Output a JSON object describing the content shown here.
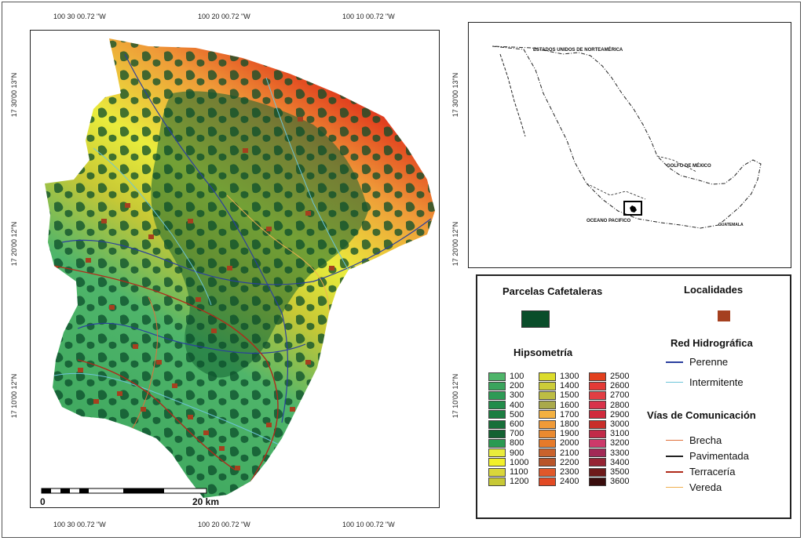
{
  "coords": {
    "top": [
      "100 30 00.72 \"W",
      "100 20 00.72 \"W",
      "100 10 00.72 \"W"
    ],
    "bottom": [
      "100 30 00.72 \"W",
      "100 20 00.72 \"W",
      "100 10 00.72 \"W"
    ],
    "left": [
      "17 30'00 13\"N",
      "17 20'00 12\"N",
      "17 10'00 12\"N"
    ],
    "right": [
      "17 30'00 13\"N",
      "17 20'00 12\"N",
      "17 10'00 12\"N"
    ]
  },
  "scalebar": {
    "start": "0",
    "end": "20 km"
  },
  "locator": {
    "usa": "ESTADOS UNIDOS DE NORTEAMÉRICA",
    "gulf": "GOLFO DE MÉXICO",
    "pacific": "OCEANO PACIFICO",
    "guatemala": "GUATEMALA"
  },
  "legend": {
    "parcelas": {
      "label": "Parcelas Cafetaleras",
      "color": "#0a4d2a"
    },
    "localidades": {
      "label": "Localidades",
      "color": "#a5401f"
    },
    "hipsometria": {
      "label": "Hipsometría",
      "classes": [
        {
          "value": "100",
          "color": "#4fb56a"
        },
        {
          "value": "200",
          "color": "#3aa45c"
        },
        {
          "value": "300",
          "color": "#2e9a55"
        },
        {
          "value": "400",
          "color": "#228c4a"
        },
        {
          "value": "500",
          "color": "#1c7d41"
        },
        {
          "value": "600",
          "color": "#176f39"
        },
        {
          "value": "700",
          "color": "#136232"
        },
        {
          "value": "800",
          "color": "#2a9a52"
        },
        {
          "value": "900",
          "color": "#e9ec3c"
        },
        {
          "value": "1000",
          "color": "#f2f02a"
        },
        {
          "value": "1100",
          "color": "#d9d63a"
        },
        {
          "value": "1200",
          "color": "#c7c835"
        },
        {
          "value": "1300",
          "color": "#dcdc2c"
        },
        {
          "value": "1400",
          "color": "#cccc38"
        },
        {
          "value": "1500",
          "color": "#bdbd44"
        },
        {
          "value": "1600",
          "color": "#a9a94a"
        },
        {
          "value": "1700",
          "color": "#f3b040"
        },
        {
          "value": "1800",
          "color": "#ef9a38"
        },
        {
          "value": "1900",
          "color": "#ea8a30"
        },
        {
          "value": "2000",
          "color": "#e67a2a"
        },
        {
          "value": "2100",
          "color": "#c9622c"
        },
        {
          "value": "2200",
          "color": "#b8552a"
        },
        {
          "value": "2300",
          "color": "#e0582a"
        },
        {
          "value": "2400",
          "color": "#e24a24"
        },
        {
          "value": "2500",
          "color": "#e2401e"
        },
        {
          "value": "2600",
          "color": "#e43a36"
        },
        {
          "value": "2700",
          "color": "#e23e44"
        },
        {
          "value": "2800",
          "color": "#d9324a"
        },
        {
          "value": "2900",
          "color": "#d02a3c"
        },
        {
          "value": "3000",
          "color": "#c82e2a"
        },
        {
          "value": "3100",
          "color": "#c22a48"
        },
        {
          "value": "3200",
          "color": "#cc3a6a"
        },
        {
          "value": "3300",
          "color": "#a22a56"
        },
        {
          "value": "3400",
          "color": "#962434"
        },
        {
          "value": "3500",
          "color": "#6e1a1a"
        },
        {
          "value": "3600",
          "color": "#3a0d0d"
        }
      ]
    },
    "red_hidrografica": {
      "label": "Red Hidrográfica",
      "items": [
        {
          "label": "Perenne",
          "color": "#2a3f9e"
        },
        {
          "label": "Intermitente",
          "color": "#6cc4d8"
        }
      ]
    },
    "vias": {
      "label": "Vías de Comunicación",
      "items": [
        {
          "label": "Brecha",
          "color": "#e0703a"
        },
        {
          "label": "Pavimentada",
          "color": "#222222"
        },
        {
          "label": "Terracería",
          "color": "#b02a1a"
        },
        {
          "label": "Vereda",
          "color": "#f0b050"
        }
      ]
    }
  }
}
